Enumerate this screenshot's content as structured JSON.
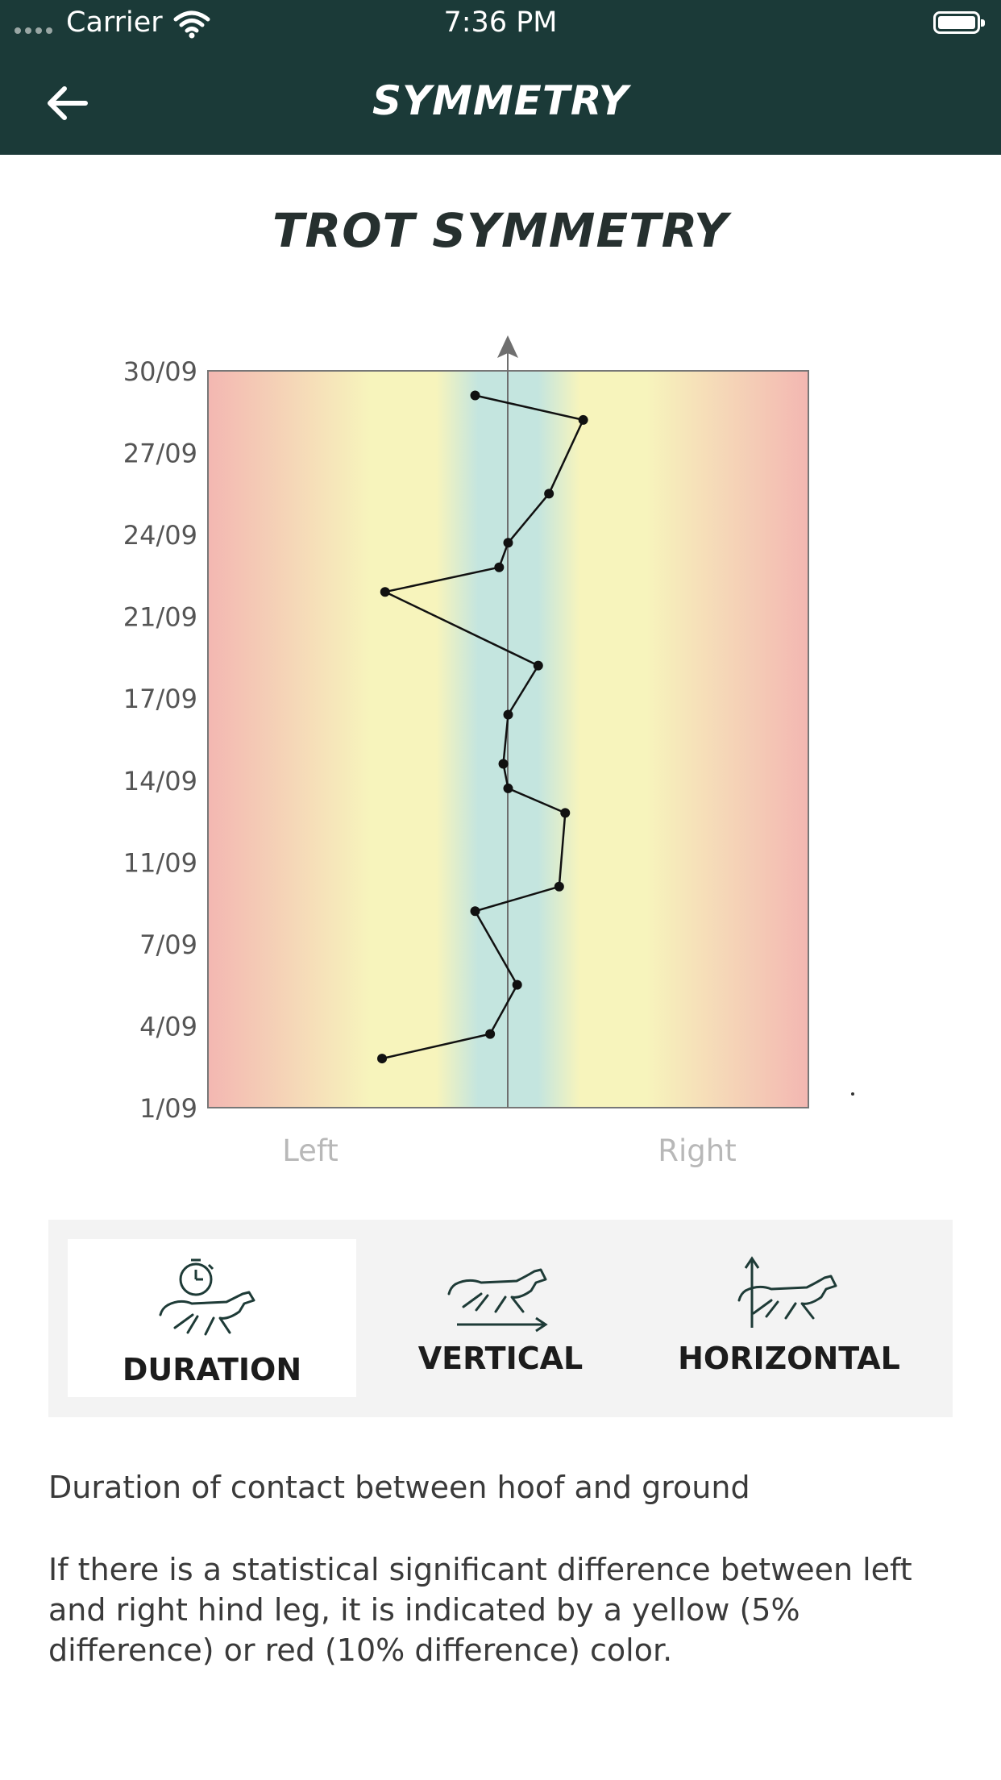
{
  "status_bar": {
    "carrier": "Carrier",
    "time": "7:36 PM"
  },
  "header": {
    "title": "SYMMETRY"
  },
  "chart_title": "TROT SYMMETRY",
  "side_labels": {
    "left": "Left",
    "right": "Right"
  },
  "tabs": [
    {
      "label": "DURATION",
      "icon": "stopwatch-horse-icon",
      "active": true
    },
    {
      "label": "VERTICAL",
      "icon": "horse-horizontal-arrow-icon",
      "active": false
    },
    {
      "label": "HORIZONTAL",
      "icon": "horse-vertical-arrow-icon",
      "active": false
    }
  ],
  "description": {
    "title": "Duration of contact between hoof and ground",
    "body": "If there is a statistical significant difference between left and right hind leg, it is indicated by a yellow (5% difference) or red (10% difference) color."
  },
  "colors": {
    "header_bg": "#1b3a38",
    "zone_center": "#c4e5df",
    "zone_yellow": "#f7f4bc",
    "zone_red": "#f3b7b2"
  },
  "chart_data": {
    "type": "line",
    "orientation": "vertical",
    "y_tick_labels": [
      "1/09",
      "4/09",
      "7/09",
      "11/09",
      "14/09",
      "17/09",
      "21/09",
      "24/09",
      "27/09",
      "30/09"
    ],
    "x_range": [
      -50,
      50
    ],
    "y_range": [
      0,
      27
    ],
    "points": [
      {
        "x": -21,
        "y": 1.8
      },
      {
        "x": -3,
        "y": 2.7
      },
      {
        "x": 1.5,
        "y": 4.5
      },
      {
        "x": -5.5,
        "y": 7.2
      },
      {
        "x": 8.5,
        "y": 8.1
      },
      {
        "x": 9.5,
        "y": 10.8
      },
      {
        "x": 0,
        "y": 11.7
      },
      {
        "x": -0.8,
        "y": 12.6
      },
      {
        "x": 0,
        "y": 14.4
      },
      {
        "x": 5,
        "y": 16.2
      },
      {
        "x": -20.5,
        "y": 18.9
      },
      {
        "x": -1.5,
        "y": 19.8
      },
      {
        "x": 0,
        "y": 20.7
      },
      {
        "x": 6.8,
        "y": 22.5
      },
      {
        "x": 12.5,
        "y": 25.2
      },
      {
        "x": -5.5,
        "y": 26.1
      }
    ]
  }
}
